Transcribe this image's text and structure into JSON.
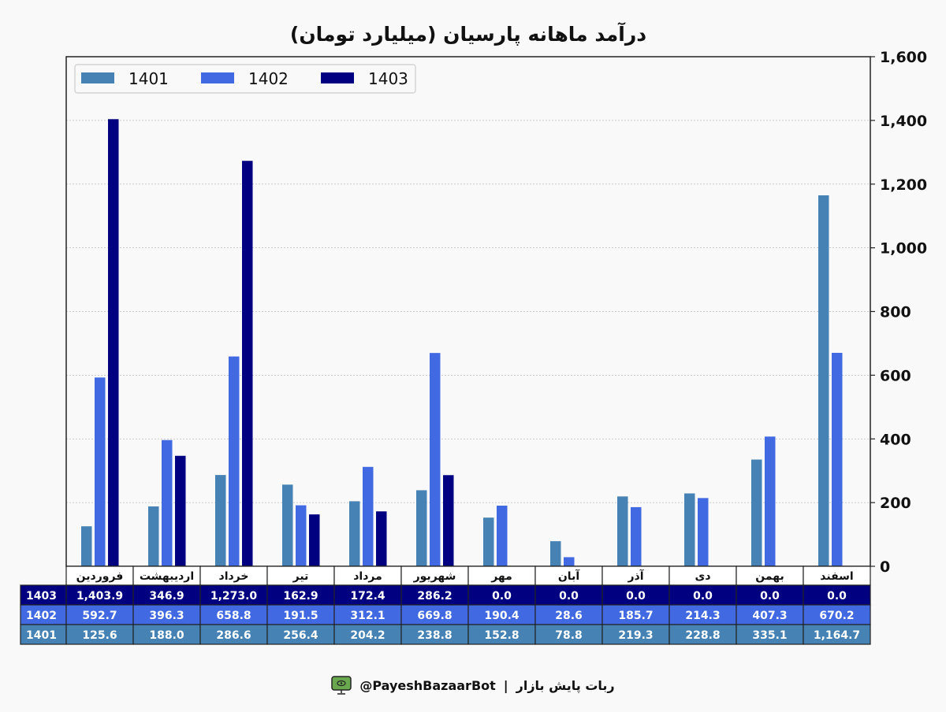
{
  "footer": {
    "bot_handle": "@PayeshBazaarBot",
    "separator": "|",
    "bot_name": "ربات پایش بازار"
  },
  "chart_data": {
    "type": "bar",
    "title": "درآمد ماهانه پارسیان (میلیارد تومان)",
    "xlabel": "",
    "ylabel": "",
    "ylim": [
      0,
      1600
    ],
    "yticks": [
      0,
      200,
      400,
      600,
      800,
      1000,
      1200,
      1400,
      1600
    ],
    "ytick_labels": [
      "0",
      "200",
      "400",
      "600",
      "800",
      "1,000",
      "1,200",
      "1,400",
      "1,600"
    ],
    "y_axis_side": "right",
    "grid": true,
    "legend_position": "top-left",
    "categories": [
      "فروردین",
      "اردیبهشت",
      "خرداد",
      "تیر",
      "مرداد",
      "شهریور",
      "مهر",
      "آبان",
      "آذر",
      "دی",
      "بهمن",
      "اسفند"
    ],
    "series": [
      {
        "name": "1401",
        "color": "#4682b4",
        "values": [
          125.6,
          188.0,
          286.6,
          256.4,
          204.2,
          238.8,
          152.8,
          78.8,
          219.3,
          228.8,
          335.1,
          1164.7
        ],
        "labels": [
          "125.6",
          "188.0",
          "286.6",
          "256.4",
          "204.2",
          "238.8",
          "152.8",
          "78.8",
          "219.3",
          "228.8",
          "335.1",
          "1,164.7"
        ]
      },
      {
        "name": "1402",
        "color": "#4169e1",
        "values": [
          592.7,
          396.3,
          658.8,
          191.5,
          312.1,
          669.8,
          190.4,
          28.6,
          185.7,
          214.3,
          407.3,
          670.2
        ],
        "labels": [
          "592.7",
          "396.3",
          "658.8",
          "191.5",
          "312.1",
          "669.8",
          "190.4",
          "28.6",
          "185.7",
          "214.3",
          "407.3",
          "670.2"
        ]
      },
      {
        "name": "1403",
        "color": "#000080",
        "values": [
          1403.9,
          346.9,
          1273.0,
          162.9,
          172.4,
          286.2,
          0.0,
          0.0,
          0.0,
          0.0,
          0.0,
          0.0
        ],
        "labels": [
          "1,403.9",
          "346.9",
          "1,273.0",
          "162.9",
          "172.4",
          "286.2",
          "0.0",
          "0.0",
          "0.0",
          "0.0",
          "0.0",
          "0.0"
        ]
      }
    ],
    "table_row_order": [
      "1403",
      "1402",
      "1401"
    ]
  }
}
